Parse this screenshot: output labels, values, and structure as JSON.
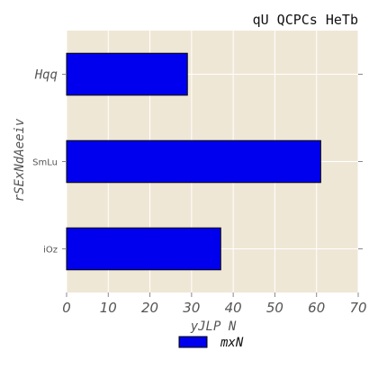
{
  "chart_data": {
    "type": "bar",
    "orientation": "horizontal",
    "title": "qU QCPCs HeTb",
    "xlabel": "yJLP N",
    "ylabel": "rSExNdAeeiv",
    "categories": [
      "Hqq",
      "SmLu",
      "iOz"
    ],
    "series": [
      {
        "name": "mxN",
        "values": [
          29,
          61,
          37
        ],
        "color": "#0000ee"
      }
    ],
    "xlim": [
      0,
      70
    ],
    "xticks": [
      0,
      10,
      20,
      30,
      40,
      50,
      60,
      70
    ],
    "grid": true,
    "legend": {
      "position": "bottom-center"
    },
    "background": "#efe7d6"
  }
}
